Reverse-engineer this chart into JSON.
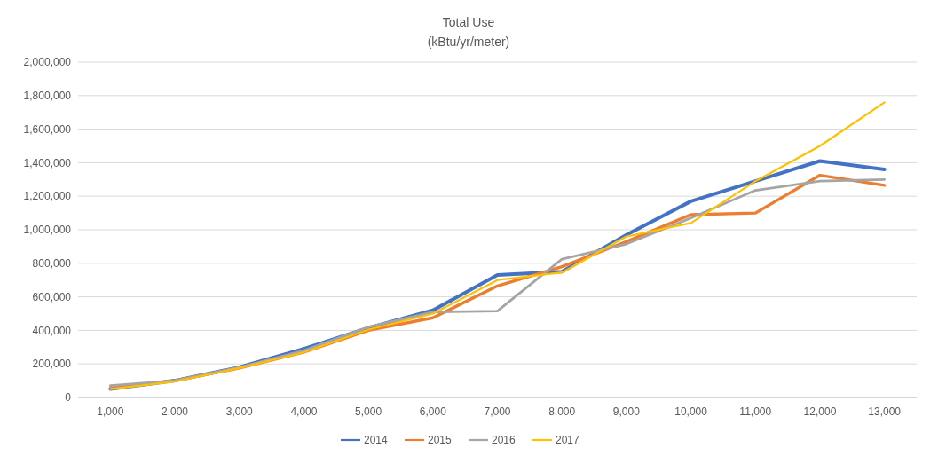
{
  "chart_data": {
    "type": "line",
    "title": "Total Use",
    "subtitle": "(kBtu/yr/meter)",
    "categories": [
      "1,000",
      "2,000",
      "3,000",
      "4,000",
      "5,000",
      "6,000",
      "7,000",
      "8,000",
      "9,000",
      "10,000",
      "11,000",
      "12,000",
      "13,000"
    ],
    "series": [
      {
        "name": "2014",
        "color": "#4472c4",
        "values": [
          50000,
          100000,
          180000,
          290000,
          415000,
          520000,
          730000,
          750000,
          970000,
          1170000,
          1290000,
          1410000,
          1360000
        ]
      },
      {
        "name": "2015",
        "color": "#ed7d31",
        "values": [
          55000,
          100000,
          175000,
          270000,
          400000,
          475000,
          665000,
          780000,
          930000,
          1090000,
          1100000,
          1325000,
          1265000
        ]
      },
      {
        "name": "2016",
        "color": "#a5a5a5",
        "values": [
          70000,
          100000,
          180000,
          280000,
          420000,
          510000,
          515000,
          825000,
          915000,
          1070000,
          1235000,
          1290000,
          1300000
        ]
      },
      {
        "name": "2017",
        "color": "#ffc000",
        "values": [
          50000,
          95000,
          175000,
          270000,
          405000,
          500000,
          700000,
          745000,
          960000,
          1040000,
          1290000,
          1500000,
          1760000
        ]
      }
    ],
    "ylim": [
      0,
      2000000
    ],
    "yticks": [
      {
        "value": 0,
        "label": "0"
      },
      {
        "value": 200000,
        "label": "200,000"
      },
      {
        "value": 400000,
        "label": "400,000"
      },
      {
        "value": 600000,
        "label": "600,000"
      },
      {
        "value": 800000,
        "label": "800,000"
      },
      {
        "value": 1000000,
        "label": "1,000,000"
      },
      {
        "value": 1200000,
        "label": "1,200,000"
      },
      {
        "value": 1400000,
        "label": "1,400,000"
      },
      {
        "value": 1600000,
        "label": "1,600,000"
      },
      {
        "value": 1800000,
        "label": "1,800,000"
      },
      {
        "value": 2000000,
        "label": "2,000,000"
      }
    ],
    "grid": "y",
    "legend": "bottom",
    "marker": "none",
    "line_style": "solid"
  }
}
